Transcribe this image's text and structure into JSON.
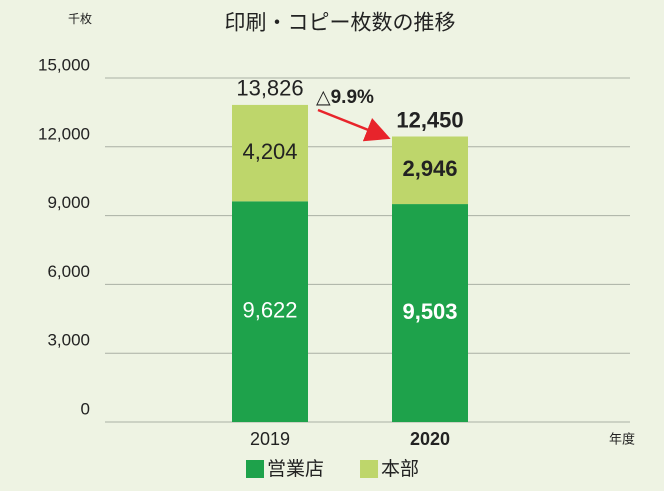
{
  "chart_data": {
    "type": "stacked_bar",
    "title": "印刷・コピー枚数の推移",
    "y_unit_label": "千枚",
    "x_label": "年度",
    "categories": [
      "2019",
      "2020"
    ],
    "bold_categories": [
      false,
      true
    ],
    "series": [
      {
        "name": "営業店",
        "color": "#1ea24b",
        "values": [
          9622,
          9503
        ],
        "value_labels": [
          "9,622",
          "9,503"
        ]
      },
      {
        "name": "本部",
        "color": "#bed66b",
        "values": [
          4204,
          2946
        ],
        "value_labels": [
          "4,204",
          "2,946"
        ]
      }
    ],
    "totals": [
      13826,
      12450
    ],
    "totals_labels": [
      "13,826",
      "12,450"
    ],
    "annotation": "△9.9%",
    "annotation_color": "#e8242b",
    "ylim": [
      0,
      15000
    ],
    "yticks": [
      0,
      {
        "value": 3000,
        "label": "3,000"
      },
      {
        "value": 6000,
        "label": "6,000"
      },
      {
        "value": 9000,
        "label": "9,000"
      },
      {
        "value": 12000,
        "label": "12,000"
      },
      {
        "value": 15000,
        "label": "15,000"
      }
    ],
    "grid": true
  }
}
